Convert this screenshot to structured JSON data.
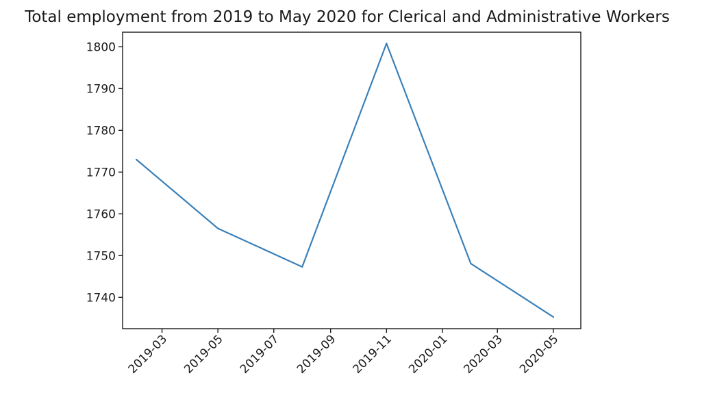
{
  "chart_data": {
    "type": "line",
    "title": "Total employment from 2019 to May 2020 for Clerical and Administrative Workers",
    "xlabel": "",
    "ylabel": "",
    "x": [
      "2019-02",
      "2019-05",
      "2019-08",
      "2019-11",
      "2020-02",
      "2020-05"
    ],
    "series": [
      {
        "values": [
          1773.0,
          1756.5,
          1747.3,
          1800.8,
          1748.1,
          1735.3
        ]
      }
    ],
    "x_ticks": [
      "2019-03",
      "2019-05",
      "2019-07",
      "2019-09",
      "2019-11",
      "2020-01",
      "2020-03",
      "2020-05"
    ],
    "y_ticks": [
      1740,
      1750,
      1760,
      1770,
      1780,
      1790,
      1800
    ],
    "xlim": [
      "2019-01-17",
      "2020-05-31"
    ],
    "ylim": [
      1732.5,
      1803.5
    ],
    "grid": false,
    "line_color": "#3a80b9"
  }
}
